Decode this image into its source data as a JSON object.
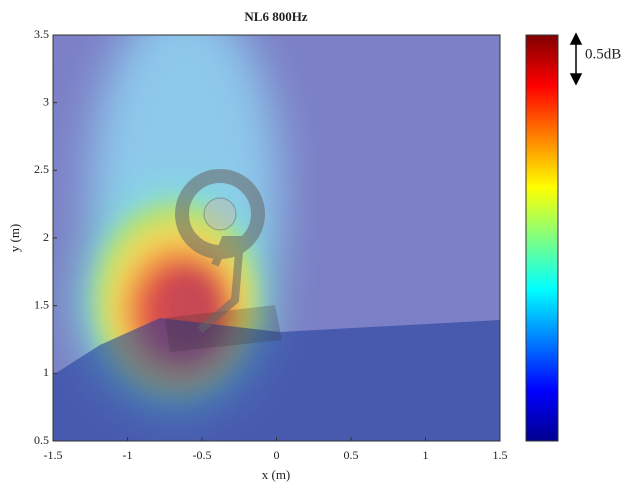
{
  "chart_data": {
    "type": "heatmap",
    "title": "NL6 800Hz",
    "xlabel": "x (m)",
    "ylabel": "y (m)",
    "xlim": [
      -1.5,
      1.5
    ],
    "xticks": [
      -1.5,
      -1,
      -0.5,
      0,
      0.5,
      1,
      1.5
    ],
    "ylim": [
      0.5,
      3.5
    ],
    "yticks": [
      0.5,
      1,
      1.5,
      2,
      2.5,
      3,
      3.5
    ],
    "colormap": "jet",
    "colorbar_annotation": "0.5dB"
  }
}
